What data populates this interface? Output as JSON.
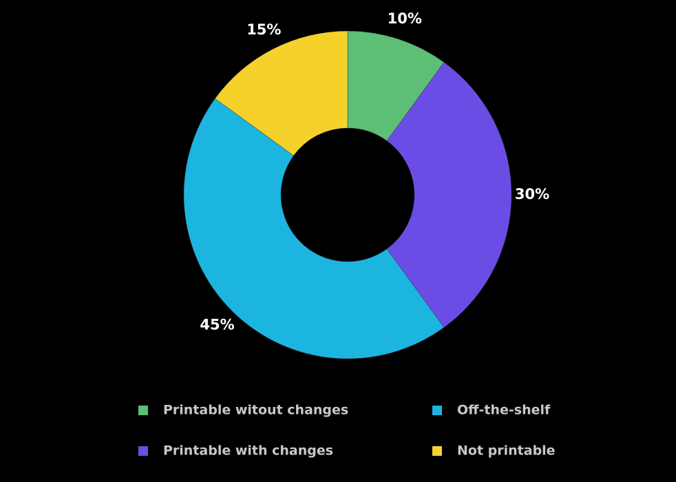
{
  "chart_data": {
    "type": "donut",
    "categories": [
      "Printable witout changes",
      "Printable with changes",
      "Off-the-shelf",
      "Not printable"
    ],
    "values": [
      10,
      30,
      45,
      15
    ],
    "value_labels": [
      "10%",
      "30%",
      "45%",
      "15%"
    ],
    "colors": [
      "#5cbf75",
      "#6b4de6",
      "#1cb5e0",
      "#f5d22a"
    ]
  }
}
